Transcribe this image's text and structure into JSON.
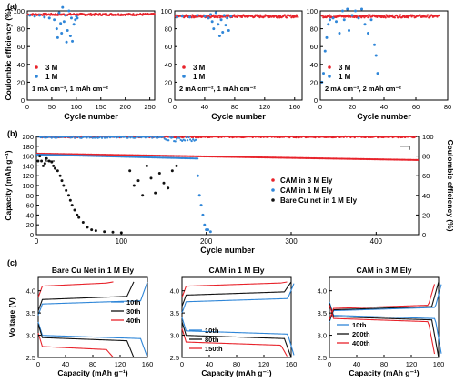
{
  "figure": {
    "panel_labels": [
      "(a)",
      "(b)",
      "(c)"
    ]
  },
  "colors": {
    "red": "#e8232b",
    "blue": "#2f86d8",
    "black": "#111111",
    "lightblue": "#5aaee8"
  },
  "chart_data": [
    {
      "id": "a1",
      "type": "scatter",
      "xlabel": "Cycle number",
      "ylabel": "Coulombic efficiency (%)",
      "xlim": [
        0,
        260
      ],
      "ylim": [
        0,
        100
      ],
      "xticks": [
        0,
        50,
        100,
        150,
        200,
        250
      ],
      "yticks": [
        0,
        20,
        40,
        60,
        80,
        100
      ],
      "annotation": "1 mA cm⁻², 1 mAh cm⁻²",
      "series": [
        {
          "name": "3 M",
          "color": "#e8232b",
          "y_mean": 96,
          "x_range": [
            1,
            260
          ],
          "noise": 1
        },
        {
          "name": "1 M",
          "color": "#2f86d8",
          "points": [
            [
              5,
              95
            ],
            [
              15,
              94
            ],
            [
              25,
              95
            ],
            [
              35,
              93
            ],
            [
              45,
              92
            ],
            [
              55,
              90
            ],
            [
              60,
              80
            ],
            [
              62,
              70
            ],
            [
              65,
              98
            ],
            [
              68,
              86
            ],
            [
              70,
              75
            ],
            [
              72,
              104
            ],
            [
              75,
              88
            ],
            [
              78,
              95
            ],
            [
              80,
              65
            ],
            [
              82,
              78
            ],
            [
              85,
              100
            ],
            [
              88,
              72
            ],
            [
              90,
              92
            ],
            [
              92,
              66
            ],
            [
              95,
              85
            ],
            [
              98,
              90
            ],
            [
              100,
              94
            ],
            [
              102,
              92
            ]
          ]
        }
      ]
    },
    {
      "id": "a2",
      "type": "scatter",
      "xlabel": "Cycle number",
      "xlim": [
        0,
        170
      ],
      "ylim": [
        0,
        100
      ],
      "xticks": [
        0,
        40,
        80,
        120,
        160
      ],
      "yticks": [
        0,
        20,
        40,
        60,
        80,
        100
      ],
      "annotation": "2 mA cm⁻², 1 mAh cm⁻²",
      "series": [
        {
          "name": "3 M",
          "color": "#e8232b",
          "y_mean": 94,
          "x_range": [
            1,
            165
          ],
          "noise": 1.5
        },
        {
          "name": "1 M",
          "color": "#2f86d8",
          "points": [
            [
              3,
              93
            ],
            [
              10,
              94
            ],
            [
              20,
              93
            ],
            [
              30,
              95
            ],
            [
              40,
              94
            ],
            [
              45,
              92
            ],
            [
              48,
              96
            ],
            [
              50,
              88
            ],
            [
              52,
              80
            ],
            [
              55,
              98
            ],
            [
              58,
              85
            ],
            [
              60,
              72
            ],
            [
              62,
              90
            ],
            [
              64,
              76
            ],
            [
              66,
              95
            ],
            [
              68,
              84
            ],
            [
              70,
              92
            ],
            [
              72,
              78
            ],
            [
              75,
              94
            ]
          ]
        }
      ]
    },
    {
      "id": "a3",
      "type": "scatter",
      "xlabel": "Cycle number",
      "xlim": [
        0,
        80
      ],
      "ylim": [
        0,
        100
      ],
      "xticks": [
        0,
        20,
        40,
        60,
        80
      ],
      "yticks": [
        0,
        20,
        40,
        60,
        80,
        100
      ],
      "annotation": "2 mA cm⁻², 2 mAh cm⁻²",
      "series": [
        {
          "name": "3 M",
          "color": "#e8232b",
          "y_mean": 94,
          "x_range": [
            1,
            75
          ],
          "noise": 1.5
        },
        {
          "name": "1 M",
          "color": "#2f86d8",
          "points": [
            [
              1,
              20
            ],
            [
              2,
              30
            ],
            [
              3,
              55
            ],
            [
              4,
              70
            ],
            [
              5,
              85
            ],
            [
              6,
              90
            ],
            [
              8,
              92
            ],
            [
              10,
              88
            ],
            [
              12,
              75
            ],
            [
              14,
              100
            ],
            [
              15,
              90
            ],
            [
              17,
              102
            ],
            [
              18,
              78
            ],
            [
              20,
              95
            ],
            [
              22,
              100
            ],
            [
              24,
              92
            ],
            [
              26,
              102
            ],
            [
              28,
              85
            ],
            [
              30,
              75
            ],
            [
              32,
              90
            ],
            [
              34,
              62
            ],
            [
              35,
              50
            ],
            [
              36,
              30
            ]
          ]
        }
      ]
    },
    {
      "id": "b",
      "type": "scatter",
      "xlabel": "Cycle number",
      "ylabel_left": "Capacity (mAh g⁻¹)",
      "ylabel_right": "Coulombic efficiency (%)",
      "xlim": [
        0,
        450
      ],
      "ylim_left": [
        0,
        200
      ],
      "ylim_right": [
        0,
        100
      ],
      "xticks": [
        0,
        100,
        200,
        300,
        400
      ],
      "yticks_left": [
        0,
        20,
        40,
        60,
        80,
        100,
        120,
        140,
        160,
        180,
        200
      ],
      "yticks_right": [
        0,
        20,
        40,
        60,
        80,
        100
      ],
      "legend": [
        "CAM in 3 M Ely",
        "CAM in 1 M Ely",
        "Bare Cu net in 1 M Ely"
      ],
      "series": [
        {
          "name": "CAM in 3 M Ely",
          "color": "#e8232b",
          "capacity": {
            "x": [
              1,
              450
            ],
            "y": [
              165,
              152
            ]
          },
          "ce": 99.5
        },
        {
          "name": "CAM in 1 M Ely",
          "color": "#2f86d8",
          "capacity": {
            "x": [
              1,
              190
            ],
            "y": [
              163,
              155
            ]
          },
          "ce": 99.2,
          "ce_drop_points": [
            [
              190,
              60
            ],
            [
              192,
              40
            ],
            [
              194,
              30
            ],
            [
              196,
              20
            ],
            [
              198,
              10
            ],
            [
              200,
              5
            ],
            [
              202,
              5
            ],
            [
              205,
              3
            ]
          ]
        },
        {
          "name": "Bare Cu net in 1 M Ely",
          "color": "#111111",
          "points": [
            [
              2,
              150
            ],
            [
              4,
              160
            ],
            [
              6,
              150
            ],
            [
              8,
              140
            ],
            [
              10,
              145
            ],
            [
              12,
              155
            ],
            [
              15,
              150
            ],
            [
              18,
              148
            ],
            [
              20,
              140
            ],
            [
              22,
              135
            ],
            [
              25,
              130
            ],
            [
              28,
              120
            ],
            [
              30,
              110
            ],
            [
              32,
              100
            ],
            [
              35,
              90
            ],
            [
              38,
              80
            ],
            [
              40,
              70
            ],
            [
              42,
              60
            ],
            [
              45,
              50
            ],
            [
              48,
              40
            ],
            [
              50,
              35
            ],
            [
              55,
              25
            ],
            [
              60,
              15
            ],
            [
              65,
              10
            ],
            [
              70,
              8
            ],
            [
              80,
              6
            ],
            [
              90,
              5
            ],
            [
              100,
              4
            ],
            [
              110,
              130
            ],
            [
              115,
              100
            ],
            [
              120,
              110
            ],
            [
              125,
              80
            ],
            [
              130,
              140
            ],
            [
              135,
              115
            ],
            [
              140,
              85
            ],
            [
              145,
              125
            ],
            [
              150,
              105
            ],
            [
              155,
              95
            ],
            [
              160,
              130
            ],
            [
              165,
              140
            ]
          ]
        }
      ]
    },
    {
      "id": "c1",
      "type": "line",
      "title": "Bare Cu Net in 1 M Ely",
      "xlabel": "Capacity (mAh g⁻¹)",
      "ylabel": "Voltage (V)",
      "xlim": [
        0,
        160
      ],
      "ylim": [
        2.5,
        4.3
      ],
      "xticks": [
        0,
        40,
        80,
        120,
        160
      ],
      "yticks": [
        2.5,
        3.0,
        3.5,
        4.0
      ],
      "series": [
        {
          "name": "10th",
          "color": "#2f86d8",
          "charge_plateau": 3.7,
          "discharge_plateau": 3.0,
          "capacity": 160
        },
        {
          "name": "30th",
          "color": "#111111",
          "charge_plateau": 3.8,
          "discharge_plateau": 2.95,
          "capacity": 140
        },
        {
          "name": "40th",
          "color": "#e8232b",
          "charge_plateau": 4.1,
          "discharge_plateau": 2.75,
          "capacity": 110
        }
      ]
    },
    {
      "id": "c2",
      "type": "line",
      "title": "CAM in 1 M Ely",
      "xlabel": "Capacity (mAh g⁻¹)",
      "xlim": [
        0,
        160
      ],
      "ylim": [
        2.5,
        4.3
      ],
      "xticks": [
        0,
        40,
        80,
        120,
        160
      ],
      "yticks": [
        2.5,
        3.0,
        3.5,
        4.0
      ],
      "series": [
        {
          "name": "10th",
          "color": "#2f86d8",
          "charge_plateau": 3.75,
          "discharge_plateau": 3.1,
          "capacity": 165
        },
        {
          "name": "80th",
          "color": "#111111",
          "charge_plateau": 3.9,
          "discharge_plateau": 3.0,
          "capacity": 160
        },
        {
          "name": "150th",
          "color": "#e8232b",
          "charge_plateau": 4.1,
          "discharge_plateau": 2.85,
          "capacity": 155
        }
      ]
    },
    {
      "id": "c3",
      "type": "line",
      "title": "CAM in 3 M Ely",
      "xlabel": "Capacity (mAh g⁻¹)",
      "xlim": [
        0,
        160
      ],
      "ylim": [
        2.5,
        4.3
      ],
      "xticks": [
        0,
        40,
        80,
        120,
        160
      ],
      "yticks": [
        2.5,
        3.0,
        3.5,
        4.0
      ],
      "series": [
        {
          "name": "10th",
          "color": "#2f86d8",
          "charge_plateau": 3.55,
          "discharge_plateau": 3.45,
          "capacity": 165
        },
        {
          "name": "200th",
          "color": "#111111",
          "charge_plateau": 3.57,
          "discharge_plateau": 3.42,
          "capacity": 160
        },
        {
          "name": "400th",
          "color": "#e8232b",
          "charge_plateau": 3.6,
          "discharge_plateau": 3.38,
          "capacity": 155
        }
      ]
    }
  ]
}
